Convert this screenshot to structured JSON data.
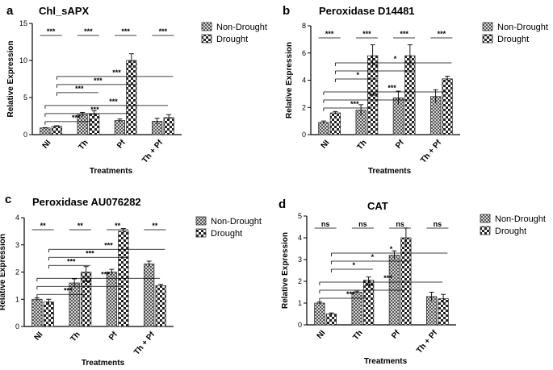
{
  "figure": {
    "xlabel": "Treatments",
    "ylabel": "Relative Expression",
    "legend": [
      "Non-Drought",
      "Drought"
    ],
    "categories": [
      "NI",
      "Th",
      "Pf",
      "Th + Pf"
    ]
  },
  "chart_data": [
    {
      "type": "bar",
      "panel": "a",
      "title": "Chl_sAPX",
      "xlabel": "Treatments",
      "ylabel": "Relative Expression",
      "categories": [
        "NI",
        "Th",
        "Pf",
        "Th + Pf"
      ],
      "ylim": [
        0,
        15
      ],
      "yticks": [
        0,
        5,
        10,
        15
      ],
      "series": [
        {
          "name": "Non-Drought",
          "values": [
            0.9,
            2.7,
            1.9,
            1.8
          ],
          "errors": [
            0.05,
            0.3,
            0.2,
            0.4
          ]
        },
        {
          "name": "Drought",
          "values": [
            1.1,
            2.8,
            10.0,
            2.3
          ],
          "errors": [
            0.1,
            0.4,
            0.9,
            0.4
          ]
        }
      ],
      "pair_sig": [
        "***",
        "***",
        "***",
        "***"
      ],
      "cross_sig": [
        {
          "from": 0,
          "to": 1,
          "label": "***"
        },
        {
          "from": 0,
          "to": 2,
          "label": "***"
        },
        {
          "from": 0,
          "to": 3,
          "label": "***"
        }
      ],
      "cross_sig_ref": [
        {
          "from": 0,
          "to": 1,
          "label": "***"
        },
        {
          "from": 0,
          "to": 2,
          "label": "***"
        },
        {
          "from": 0,
          "to": 3,
          "label": "***"
        }
      ]
    },
    {
      "type": "bar",
      "panel": "b",
      "title": "Peroxidase D14481",
      "xlabel": "Treatments",
      "ylabel": "Relative Expression",
      "categories": [
        "NI",
        "Th",
        "Pf",
        "Th + Pf"
      ],
      "ylim": [
        0,
        8
      ],
      "yticks": [
        0,
        2,
        4,
        6,
        8
      ],
      "series": [
        {
          "name": "Non-Drought",
          "values": [
            0.9,
            1.8,
            2.7,
            2.8
          ],
          "errors": [
            0.1,
            0.4,
            0.5,
            0.5
          ]
        },
        {
          "name": "Drought",
          "values": [
            1.6,
            5.8,
            5.8,
            4.1
          ],
          "errors": [
            0.1,
            0.8,
            0.8,
            0.2
          ]
        }
      ],
      "pair_sig": [
        "***",
        "***",
        "***",
        "***"
      ],
      "cross_sig": [
        {
          "from": 0,
          "to": 1,
          "label": "***"
        },
        {
          "from": 0,
          "to": 2,
          "label": "***"
        },
        {
          "from": 0,
          "to": 3,
          "label": "***"
        }
      ],
      "cross_sig_ref": [
        {
          "from": 0,
          "to": 1,
          "label": "*"
        },
        {
          "from": 0,
          "to": 2,
          "label": "*"
        },
        {
          "from": 0,
          "to": 3,
          "label": "*"
        }
      ]
    },
    {
      "type": "bar",
      "panel": "c",
      "title": "Peroxidase AU076282",
      "xlabel": "Treatments",
      "ylabel": "Relative Expression",
      "categories": [
        "NI",
        "Th",
        "Pf",
        "Th + Pf"
      ],
      "ylim": [
        0,
        4
      ],
      "yticks": [
        0,
        1,
        2,
        3,
        4
      ],
      "series": [
        {
          "name": "Non-Drought",
          "values": [
            1.0,
            1.6,
            2.0,
            2.3
          ],
          "errors": [
            0.05,
            0.15,
            0.1,
            0.1
          ]
        },
        {
          "name": "Drought",
          "values": [
            0.9,
            2.0,
            3.5,
            1.5
          ],
          "errors": [
            0.1,
            0.2,
            0.1,
            0.05
          ]
        }
      ],
      "pair_sig": [
        "**",
        "**",
        "**",
        "**"
      ],
      "cross_sig": [
        {
          "from": 0,
          "to": 1,
          "label": "***"
        },
        {
          "from": 0,
          "to": 2,
          "label": "***"
        },
        {
          "from": 0,
          "to": 3,
          "label": "***"
        }
      ],
      "cross_sig_ref": [
        {
          "from": 0,
          "to": 1,
          "label": "***"
        },
        {
          "from": 0,
          "to": 2,
          "label": "***"
        },
        {
          "from": 0,
          "to": 3,
          "label": "***"
        }
      ]
    },
    {
      "type": "bar",
      "panel": "d",
      "title": "CAT",
      "xlabel": "Treatments",
      "ylabel": "Relative Expression",
      "categories": [
        "NI",
        "Th",
        "Pf",
        "Th + Pf"
      ],
      "ylim": [
        0,
        5
      ],
      "yticks": [
        0,
        1,
        2,
        3,
        4,
        5
      ],
      "series": [
        {
          "name": "Non-Drought",
          "values": [
            1.0,
            1.5,
            3.2,
            1.3
          ],
          "errors": [
            0.05,
            0.05,
            0.2,
            0.2
          ]
        },
        {
          "name": "Drought",
          "values": [
            0.5,
            2.05,
            4.0,
            1.2
          ],
          "errors": [
            0.05,
            0.15,
            0.45,
            0.2
          ]
        }
      ],
      "pair_sig": [
        "ns",
        "ns",
        "ns",
        "ns"
      ],
      "cross_sig": [
        {
          "from": 0,
          "to": 1,
          "label": "***"
        },
        {
          "from": 0,
          "to": 2,
          "label": "***"
        },
        {
          "from": 0,
          "to": 3,
          "label": "***"
        }
      ],
      "cross_sig_ref": [
        {
          "from": 0,
          "to": 1,
          "label": "*"
        },
        {
          "from": 0,
          "to": 2,
          "label": "*"
        },
        {
          "from": 0,
          "to": 3,
          "label": "*"
        }
      ]
    }
  ]
}
